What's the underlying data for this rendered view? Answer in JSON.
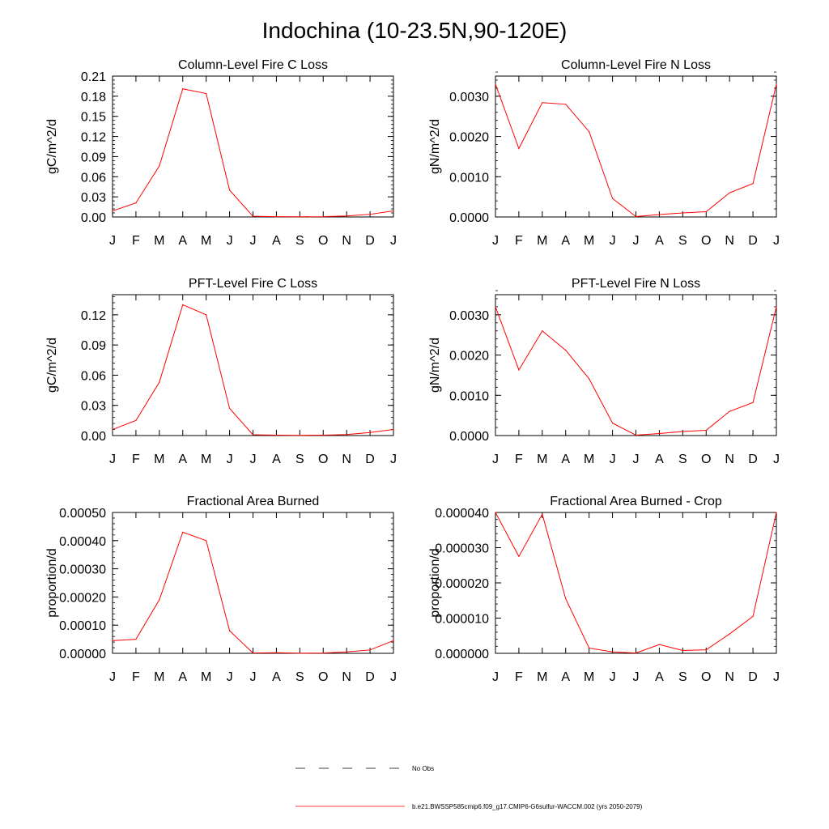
{
  "title": "Indochina (10-23.5N,90-120E)",
  "legend": {
    "items": [
      {
        "label": "No Obs",
        "style": "dashed",
        "color": "#000000"
      },
      {
        "label": "b.e21.BWSSP585cmip6.f09_g17.CMIP6-G6sulfur-WACCM.002 (yrs 2050-2079)",
        "style": "solid",
        "color": "#ff0000"
      }
    ]
  },
  "chart_data": [
    {
      "type": "line",
      "title": "Column-Level Fire C Loss",
      "ylabel": "gC/m^2/d",
      "categories": [
        "J",
        "F",
        "M",
        "A",
        "M",
        "J",
        "J",
        "A",
        "S",
        "O",
        "N",
        "D",
        "J"
      ],
      "ylim": [
        0,
        0.21
      ],
      "yticks": [
        0.0,
        0.03,
        0.06,
        0.09,
        0.12,
        0.15,
        0.18,
        0.21
      ],
      "ytick_labels": [
        "0.00",
        "0.03",
        "0.06",
        "0.09",
        "0.12",
        "0.15",
        "0.18",
        "0.21"
      ],
      "series": [
        {
          "values": [
            0.009,
            0.021,
            0.076,
            0.191,
            0.184,
            0.04,
            0.001,
            0.0005,
            0.0003,
            0.0005,
            0.0015,
            0.004,
            0.009
          ],
          "color": "#ff0000"
        }
      ]
    },
    {
      "type": "line",
      "title": "Column-Level Fire N Loss",
      "ylabel": "gN/m^2/d",
      "categories": [
        "J",
        "F",
        "M",
        "A",
        "M",
        "J",
        "J",
        "A",
        "S",
        "O",
        "N",
        "D",
        "J"
      ],
      "ylim": [
        0,
        0.0035
      ],
      "yticks": [
        0.0,
        0.001,
        0.002,
        0.003
      ],
      "ytick_labels": [
        "0.0000",
        "0.0010",
        "0.0020",
        "0.0030"
      ],
      "series": [
        {
          "values": [
            0.0033,
            0.0017,
            0.00284,
            0.0028,
            0.00212,
            0.00046,
            1e-05,
            6e-05,
            0.0001,
            0.00013,
            0.0006,
            0.00083,
            0.0033
          ],
          "color": "#ff0000"
        }
      ]
    },
    {
      "type": "line",
      "title": "PFT-Level Fire C Loss",
      "ylabel": "gC/m^2/d",
      "categories": [
        "J",
        "F",
        "M",
        "A",
        "M",
        "J",
        "J",
        "A",
        "S",
        "O",
        "N",
        "D",
        "J"
      ],
      "ylim": [
        0,
        0.14
      ],
      "yticks": [
        0.0,
        0.03,
        0.06,
        0.09,
        0.12
      ],
      "ytick_labels": [
        "0.00",
        "0.03",
        "0.06",
        "0.09",
        "0.12"
      ],
      "series": [
        {
          "values": [
            0.006,
            0.015,
            0.053,
            0.13,
            0.12,
            0.027,
            0.0008,
            0.0004,
            0.0002,
            0.0004,
            0.001,
            0.003,
            0.006
          ],
          "color": "#ff0000"
        }
      ]
    },
    {
      "type": "line",
      "title": "PFT-Level Fire N Loss",
      "ylabel": "gN/m^2/d",
      "categories": [
        "J",
        "F",
        "M",
        "A",
        "M",
        "J",
        "J",
        "A",
        "S",
        "O",
        "N",
        "D",
        "J"
      ],
      "ylim": [
        0,
        0.0035
      ],
      "yticks": [
        0.0,
        0.001,
        0.002,
        0.003
      ],
      "ytick_labels": [
        "0.0000",
        "0.0010",
        "0.0020",
        "0.0030"
      ],
      "series": [
        {
          "values": [
            0.0032,
            0.00163,
            0.0026,
            0.00212,
            0.00141,
            0.00031,
            1e-05,
            5e-05,
            0.0001,
            0.00013,
            0.0006,
            0.00082,
            0.0032
          ],
          "color": "#ff0000"
        }
      ]
    },
    {
      "type": "line",
      "title": "Fractional Area Burned",
      "ylabel": "proportion/d",
      "categories": [
        "J",
        "F",
        "M",
        "A",
        "M",
        "J",
        "J",
        "A",
        "S",
        "O",
        "N",
        "D",
        "J"
      ],
      "ylim": [
        0,
        0.0005
      ],
      "yticks": [
        0,
        0.0001,
        0.0002,
        0.0003,
        0.0004,
        0.0005
      ],
      "ytick_labels": [
        "0.00000",
        "0.00010",
        "0.00020",
        "0.00030",
        "0.00040",
        "0.00050"
      ],
      "series": [
        {
          "values": [
            4.5e-05,
            5e-05,
            0.00019,
            0.00043,
            0.0004,
            8e-05,
            1e-06,
            2e-06,
            5e-07,
            1e-06,
            5e-06,
            1.2e-05,
            4.5e-05
          ],
          "color": "#ff0000"
        }
      ]
    },
    {
      "type": "line",
      "title": "Fractional Area Burned - Crop",
      "ylabel": "proportion/d",
      "categories": [
        "J",
        "F",
        "M",
        "A",
        "M",
        "J",
        "J",
        "A",
        "S",
        "O",
        "N",
        "D",
        "J"
      ],
      "ylim": [
        0,
        4e-05
      ],
      "yticks": [
        0,
        1e-05,
        2e-05,
        3e-05,
        4e-05
      ],
      "ytick_labels": [
        "0.000000",
        "0.000010",
        "0.000020",
        "0.000030",
        "0.000040"
      ],
      "series": [
        {
          "values": [
            4e-05,
            2.75e-05,
            3.95e-05,
            1.55e-05,
            1.5e-06,
            4e-07,
            1e-07,
            2.5e-06,
            8e-07,
            1e-06,
            5.5e-06,
            1.05e-05,
            4e-05
          ],
          "color": "#ff0000"
        }
      ]
    }
  ]
}
